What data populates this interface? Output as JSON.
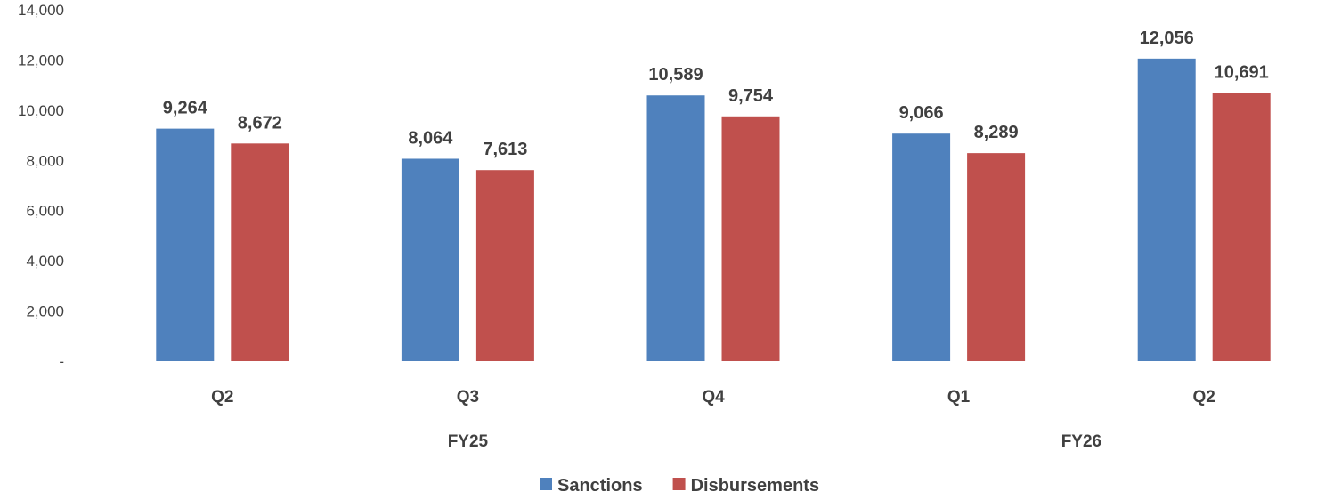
{
  "chart_data": {
    "type": "bar",
    "categories": [
      "Q2",
      "Q3",
      "Q4",
      "Q1",
      "Q2"
    ],
    "groups": [
      {
        "label": "FY25",
        "span": [
          0,
          2
        ]
      },
      {
        "label": "FY26",
        "span": [
          3,
          4
        ]
      }
    ],
    "series": [
      {
        "name": "Sanctions",
        "values": [
          9264,
          8064,
          10589,
          9066,
          12056
        ],
        "labels": [
          "9,264",
          "8,064",
          "10,589",
          "9,066",
          "12,056"
        ],
        "color": "#4F81BD"
      },
      {
        "name": "Disbursements",
        "values": [
          8672,
          7613,
          9754,
          8289,
          10691
        ],
        "labels": [
          "8,672",
          "7,613",
          "9,754",
          "8,289",
          "10,691"
        ],
        "color": "#C0504D"
      }
    ],
    "ylim": [
      0,
      14000
    ],
    "yticks": [
      0,
      2000,
      4000,
      6000,
      8000,
      10000,
      12000,
      14000
    ],
    "ytick_labels": [
      "-",
      "2,000",
      "4,000",
      "6,000",
      "8,000",
      "10,000",
      "12,000",
      "14,000"
    ],
    "title": "",
    "xlabel": "",
    "ylabel": "",
    "grid": false,
    "legend": "bottom-center",
    "text_color": "#404040"
  }
}
